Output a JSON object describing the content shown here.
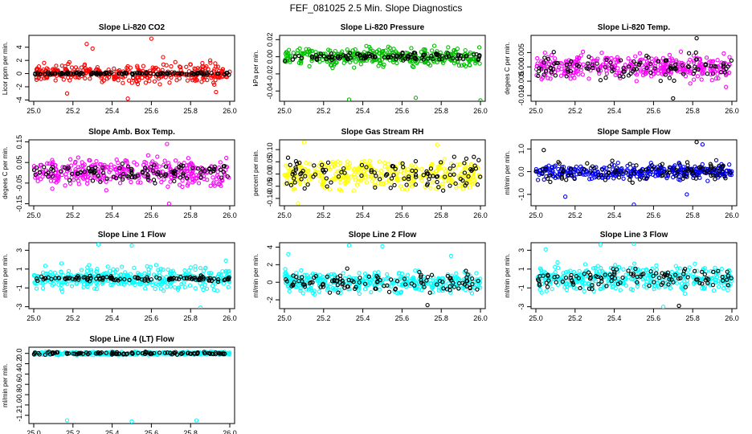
{
  "figure_title": "FEF_081025  2.5 Min. Slope Diagnostics",
  "chart_data": [
    {
      "type": "scatter",
      "title": "Slope Li-820 CO2",
      "ylabel": "Licor ppm per min.",
      "xlim": [
        25.0,
        26.0
      ],
      "ylim": [
        -4.2,
        5.8
      ],
      "x_ticks": [
        "25.0",
        "25.2",
        "25.4",
        "25.6",
        "25.8",
        "26.0"
      ],
      "y_ticks": [
        {
          "v": -4,
          "t": "-4"
        },
        {
          "v": -2,
          "t": "-2"
        },
        {
          "v": 0,
          "t": "0"
        },
        {
          "v": 2,
          "t": "2"
        },
        {
          "v": 4,
          "t": "4"
        }
      ],
      "series": [
        {
          "color": "#ff0000",
          "n": 340,
          "spread": 0.9,
          "outliers": [
            [
              25.48,
              -3.8
            ],
            [
              25.17,
              -3.0
            ],
            [
              25.27,
              4.5
            ],
            [
              25.6,
              5.3
            ],
            [
              25.3,
              3.8
            ],
            [
              25.93,
              -2.8
            ],
            [
              25.9,
              2.0
            ],
            [
              25.66,
              2.5
            ]
          ]
        },
        {
          "color": "#000000",
          "n": 120,
          "spread": 0.12,
          "outliers": []
        }
      ]
    },
    {
      "type": "scatter",
      "title": "Slope Li-820 Pressure",
      "ylabel": "kPa per min.",
      "xlim": [
        25.0,
        26.0
      ],
      "ylim": [
        -0.052,
        0.025
      ],
      "x_ticks": [
        "25.0",
        "25.2",
        "25.4",
        "25.6",
        "25.8",
        "26.0"
      ],
      "y_ticks": [
        {
          "v": -0.04,
          "t": "-0.04"
        },
        {
          "v": -0.02,
          "t": "-0.02"
        },
        {
          "v": 0,
          "t": "0.00"
        },
        {
          "v": 0.02,
          "t": "0.02"
        }
      ],
      "series": [
        {
          "color": "#00c000",
          "n": 360,
          "spread": 0.007,
          "outliers": [
            [
              25.33,
              -0.05
            ],
            [
              25.67,
              -0.048
            ],
            [
              26.0,
              -0.051
            ]
          ]
        },
        {
          "color": "#000000",
          "n": 110,
          "spread": 0.003,
          "outliers": []
        }
      ]
    },
    {
      "type": "scatter",
      "title": "Slope Li-820 Temp.",
      "ylabel": "degees C per min.",
      "xlim": [
        25.0,
        26.0
      ],
      "ylim": [
        -0.012,
        0.011
      ],
      "x_ticks": [
        "25.0",
        "25.2",
        "25.4",
        "25.6",
        "25.8",
        "26.0"
      ],
      "y_ticks": [
        {
          "v": -0.01,
          "t": "-0.010"
        },
        {
          "v": -0.005,
          "t": "-0.005"
        },
        {
          "v": 0,
          "t": "0.000"
        },
        {
          "v": 0.005,
          "t": "0.005"
        }
      ],
      "series": [
        {
          "color": "#ff00ff",
          "n": 340,
          "spread": 0.003,
          "outliers": [
            [
              25.97,
              -0.007
            ]
          ]
        },
        {
          "color": "#000000",
          "n": 110,
          "spread": 0.003,
          "outliers": [
            [
              25.7,
              -0.011
            ],
            [
              25.82,
              0.01
            ]
          ]
        }
      ]
    },
    {
      "type": "scatter",
      "title": "Slope Amb. Box Temp.",
      "ylabel": "degees C per min.",
      "xlim": [
        25.0,
        26.0
      ],
      "ylim": [
        -0.16,
        0.16
      ],
      "x_ticks": [
        "25.0",
        "25.2",
        "25.4",
        "25.6",
        "25.8",
        "26.0"
      ],
      "y_ticks": [
        {
          "v": -0.15,
          "t": "-0.15"
        },
        {
          "v": -0.05,
          "t": "-0.05"
        },
        {
          "v": 0.05,
          "t": "0.05"
        },
        {
          "v": 0.15,
          "t": "0.15"
        }
      ],
      "series": [
        {
          "color": "#ff00ff",
          "n": 340,
          "spread": 0.045,
          "outliers": [
            [
              25.69,
              -0.15
            ],
            [
              25.68,
              0.14
            ]
          ]
        },
        {
          "color": "#000000",
          "n": 110,
          "spread": 0.03,
          "outliers": []
        }
      ]
    },
    {
      "type": "scatter",
      "title": "Slope Gas Stream RH",
      "ylabel": "percent per min.",
      "xlim": [
        25.0,
        26.0
      ],
      "ylim": [
        -0.13,
        0.14
      ],
      "x_ticks": [
        "25.0",
        "25.2",
        "25.4",
        "25.6",
        "25.8",
        "26.0"
      ],
      "y_ticks": [
        {
          "v": -0.1,
          "t": "-0.10"
        },
        {
          "v": -0.05,
          "t": "-0.05"
        },
        {
          "v": 0,
          "t": "0.00"
        },
        {
          "v": 0.05,
          "t": "0.05"
        },
        {
          "v": 0.1,
          "t": "0.10"
        }
      ],
      "series": [
        {
          "color": "#ffff00",
          "n": 360,
          "spread": 0.04,
          "outliers": [
            [
              25.1,
              0.13
            ],
            [
              25.07,
              -0.12
            ],
            [
              25.78,
              0.12
            ]
          ]
        },
        {
          "color": "#000000",
          "n": 110,
          "spread": 0.045,
          "outliers": []
        }
      ]
    },
    {
      "type": "scatter",
      "title": "Slope Sample Flow",
      "ylabel": "ml/min per min.",
      "xlim": [
        25.0,
        26.0
      ],
      "ylim": [
        -1.5,
        1.4
      ],
      "x_ticks": [
        "25.0",
        "25.2",
        "25.4",
        "25.6",
        "25.8",
        "26.0"
      ],
      "y_ticks": [
        {
          "v": -1.0,
          "t": "-1.0"
        },
        {
          "v": 0,
          "t": "0.0"
        },
        {
          "v": 1.0,
          "t": "1.0"
        }
      ],
      "series": [
        {
          "color": "#0000ff",
          "n": 340,
          "spread": 0.22,
          "outliers": [
            [
              25.15,
              -1.1
            ],
            [
              25.5,
              -1.45
            ],
            [
              25.77,
              -1.0
            ],
            [
              25.85,
              1.2
            ],
            [
              25.92,
              0.5
            ]
          ]
        },
        {
          "color": "#000000",
          "n": 110,
          "spread": 0.3,
          "outliers": [
            [
              25.04,
              0.95
            ],
            [
              25.82,
              1.3
            ]
          ]
        }
      ]
    },
    {
      "type": "scatter",
      "title": "Slope Line 1 Flow",
      "ylabel": "ml/min per min.",
      "xlim": [
        25.0,
        26.0
      ],
      "ylim": [
        -3.2,
        3.8
      ],
      "x_ticks": [
        "25.0",
        "25.2",
        "25.4",
        "25.6",
        "25.8",
        "26.0"
      ],
      "y_ticks": [
        {
          "v": -3,
          "t": "-3"
        },
        {
          "v": -1,
          "t": "-1"
        },
        {
          "v": 1,
          "t": "1"
        },
        {
          "v": 3,
          "t": "3"
        }
      ],
      "series": [
        {
          "color": "#00ffff",
          "n": 360,
          "spread": 0.8,
          "outliers": [
            [
              25.33,
              3.6
            ],
            [
              25.5,
              3.5
            ],
            [
              25.85,
              -3.1
            ],
            [
              25.98,
              1.9
            ]
          ]
        },
        {
          "color": "#000000",
          "n": 110,
          "spread": 0.2,
          "outliers": []
        }
      ]
    },
    {
      "type": "scatter",
      "title": "Slope Line 2 Flow",
      "ylabel": "ml/min per min.",
      "xlim": [
        25.0,
        26.0
      ],
      "ylim": [
        -3.0,
        4.5
      ],
      "x_ticks": [
        "25.0",
        "25.2",
        "25.4",
        "25.6",
        "25.8",
        "26.0"
      ],
      "y_ticks": [
        {
          "v": -2,
          "t": "-2"
        },
        {
          "v": 0,
          "t": "0"
        },
        {
          "v": 2,
          "t": "2"
        },
        {
          "v": 4,
          "t": "4"
        }
      ],
      "series": [
        {
          "color": "#00ffff",
          "n": 360,
          "spread": 0.9,
          "outliers": [
            [
              25.33,
              4.2
            ],
            [
              25.02,
              3.2
            ],
            [
              25.5,
              4.1
            ],
            [
              25.85,
              3.0
            ]
          ]
        },
        {
          "color": "#000000",
          "n": 110,
          "spread": 0.8,
          "outliers": [
            [
              25.73,
              -2.6
            ]
          ]
        }
      ]
    },
    {
      "type": "scatter",
      "title": "Slope Line 3 Flow",
      "ylabel": "ml/min per min.",
      "xlim": [
        25.0,
        26.0
      ],
      "ylim": [
        -3.2,
        3.8
      ],
      "x_ticks": [
        "25.0",
        "25.2",
        "25.4",
        "25.6",
        "25.8",
        "26.0"
      ],
      "y_ticks": [
        {
          "v": -3,
          "t": "-3"
        },
        {
          "v": -1,
          "t": "-1"
        },
        {
          "v": 1,
          "t": "1"
        },
        {
          "v": 3,
          "t": "3"
        }
      ],
      "series": [
        {
          "color": "#00ffff",
          "n": 360,
          "spread": 0.9,
          "outliers": [
            [
              25.05,
              3.1
            ],
            [
              25.33,
              3.6
            ],
            [
              25.5,
              3.7
            ],
            [
              25.65,
              -3.0
            ]
          ]
        },
        {
          "color": "#000000",
          "n": 110,
          "spread": 0.8,
          "outliers": [
            [
              25.73,
              -2.9
            ]
          ]
        }
      ]
    },
    {
      "type": "scatter",
      "title": "Slope Line 4 (LT) Flow",
      "ylabel": "ml/min per min.",
      "xlim": [
        25.0,
        26.0
      ],
      "ylim": [
        -1.36,
        0.12
      ],
      "x_ticks": [
        "25.0",
        "25.2",
        "25.4",
        "25.6",
        "25.8",
        "26.0"
      ],
      "y_ticks": [
        {
          "v": -1.2,
          "t": "-1.2"
        },
        {
          "v": -1.0,
          "t": "-1.0"
        },
        {
          "v": -0.8,
          "t": "-0.8"
        },
        {
          "v": -0.6,
          "t": "-0.6"
        },
        {
          "v": -0.4,
          "t": "-0.4"
        },
        {
          "v": -0.2,
          "t": "-0.2"
        },
        {
          "v": 0,
          "t": "0.0"
        }
      ],
      "series": [
        {
          "color": "#00ffff",
          "n": 300,
          "spread": 0.02,
          "outliers": [
            [
              25.17,
              -1.3
            ],
            [
              25.5,
              -1.32
            ],
            [
              25.83,
              -1.3
            ]
          ]
        },
        {
          "color": "#000000",
          "n": 110,
          "spread": 0.02,
          "outliers": []
        }
      ]
    }
  ]
}
